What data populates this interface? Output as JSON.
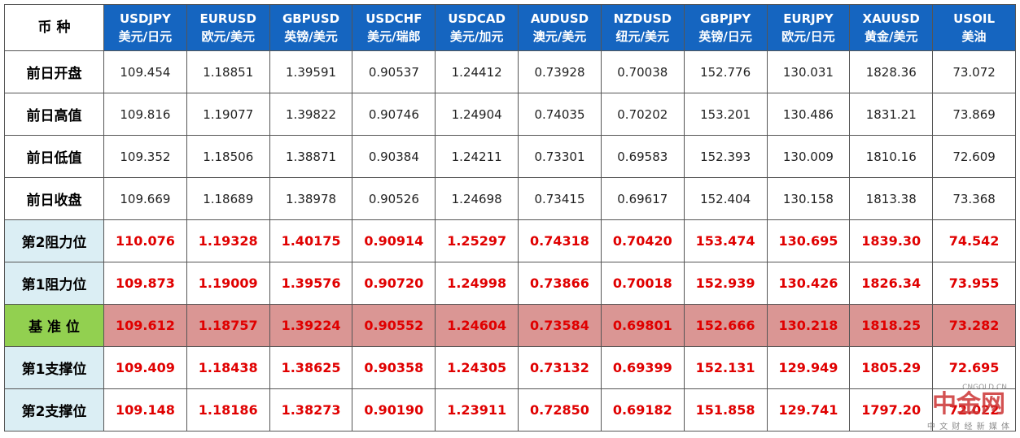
{
  "table": {
    "corner": "币 种",
    "header": [
      {
        "code": "USDJPY",
        "name": "美元/日元"
      },
      {
        "code": "EURUSD",
        "name": "欧元/美元"
      },
      {
        "code": "GBPUSD",
        "name": "英镑/美元"
      },
      {
        "code": "USDCHF",
        "name": "美元/瑞郎"
      },
      {
        "code": "USDCAD",
        "name": "美元/加元"
      },
      {
        "code": "AUDUSD",
        "name": "澳元/美元"
      },
      {
        "code": "NZDUSD",
        "name": "纽元/美元"
      },
      {
        "code": "GBPJPY",
        "name": "英镑/日元"
      },
      {
        "code": "EURJPY",
        "name": "欧元/日元"
      },
      {
        "code": "XAUUSD",
        "name": "黄金/美元"
      },
      {
        "code": "USOIL",
        "name": "美油"
      }
    ],
    "rows": [
      {
        "label": "前日开盘",
        "values": [
          "109.454",
          "1.18851",
          "1.39591",
          "0.90537",
          "1.24412",
          "0.73928",
          "0.70038",
          "152.776",
          "130.031",
          "1828.36",
          "73.072"
        ]
      },
      {
        "label": "前日高值",
        "values": [
          "109.816",
          "1.19077",
          "1.39822",
          "0.90746",
          "1.24904",
          "0.74035",
          "0.70202",
          "153.201",
          "130.486",
          "1831.21",
          "73.869"
        ]
      },
      {
        "label": "前日低值",
        "values": [
          "109.352",
          "1.18506",
          "1.38871",
          "0.90384",
          "1.24211",
          "0.73301",
          "0.69583",
          "152.393",
          "130.009",
          "1810.16",
          "72.609"
        ]
      },
      {
        "label": "前日收盘",
        "values": [
          "109.669",
          "1.18689",
          "1.38978",
          "0.90526",
          "1.24698",
          "0.73415",
          "0.69617",
          "152.404",
          "130.158",
          "1813.38",
          "73.368"
        ]
      },
      {
        "label": "第2阻力位",
        "values": [
          "110.076",
          "1.19328",
          "1.40175",
          "0.90914",
          "1.25297",
          "0.74318",
          "0.70420",
          "153.474",
          "130.695",
          "1839.30",
          "74.542"
        ]
      },
      {
        "label": "第1阻力位",
        "values": [
          "109.873",
          "1.19009",
          "1.39576",
          "0.90720",
          "1.24998",
          "0.73866",
          "0.70018",
          "152.939",
          "130.426",
          "1826.34",
          "73.955"
        ]
      },
      {
        "label": "基 准 位",
        "values": [
          "109.612",
          "1.18757",
          "1.39224",
          "0.90552",
          "1.24604",
          "0.73584",
          "0.69801",
          "152.666",
          "130.218",
          "1818.25",
          "73.282"
        ]
      },
      {
        "label": "第1支撑位",
        "values": [
          "109.409",
          "1.18438",
          "1.38625",
          "0.90358",
          "1.24305",
          "0.73132",
          "0.69399",
          "152.131",
          "129.949",
          "1805.29",
          "72.695"
        ]
      },
      {
        "label": "第2支撑位",
        "values": [
          "109.148",
          "1.18186",
          "1.38273",
          "0.90190",
          "1.23911",
          "0.72850",
          "0.69182",
          "151.858",
          "129.741",
          "1797.20",
          "72.022"
        ]
      }
    ]
  },
  "watermark": {
    "brand": "中金网",
    "domain": "CNGOLD.CN",
    "slogan": "中 文 财 经 新 媒 体"
  }
}
